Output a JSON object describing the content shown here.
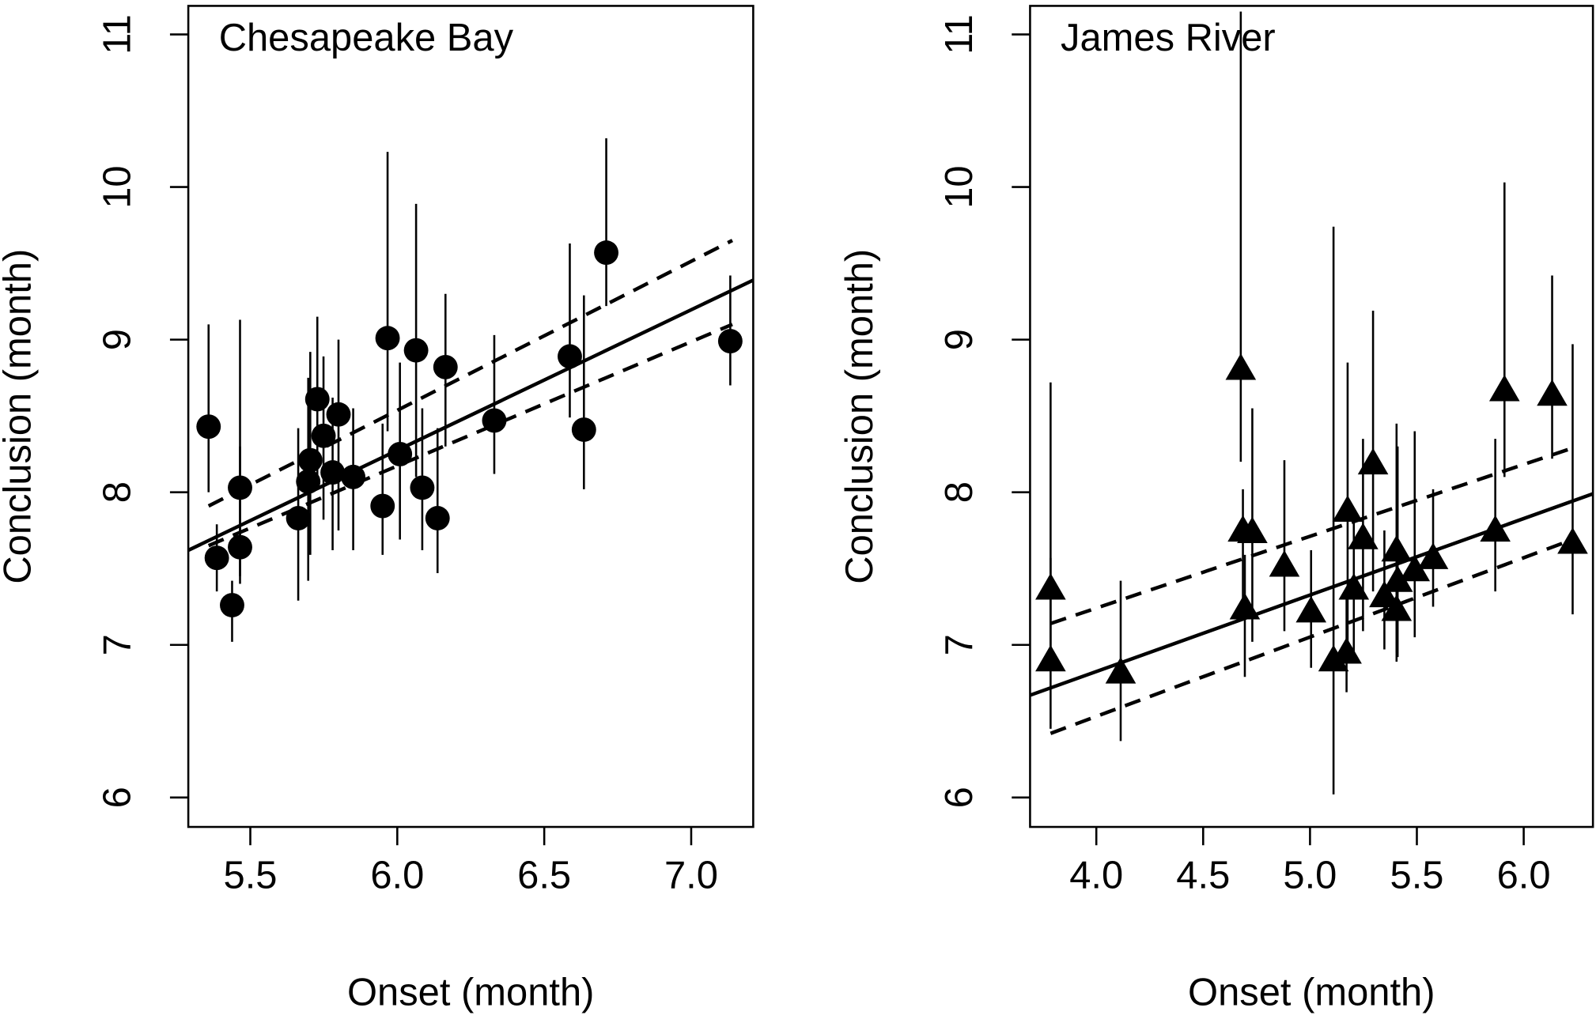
{
  "chart_data": [
    {
      "type": "scatter",
      "title": "Chesapeake Bay",
      "xlabel": "Onset (month)",
      "ylabel": "Conclusion (month)",
      "marker": "circle",
      "color": "#000000",
      "xlim": [
        5.289,
        7.211
      ],
      "ylim": [
        5.807,
        11.187
      ],
      "xticks": [
        5.5,
        {
          "value": 6,
          "label": "6.0"
        },
        6.5,
        {
          "value": 7,
          "label": "7.0"
        }
      ],
      "yticks": [
        6,
        7,
        8,
        9,
        10,
        11
      ],
      "x": [
        5.358,
        5.386,
        5.438,
        5.465,
        5.465,
        5.663,
        5.697,
        5.704,
        5.728,
        5.749,
        5.78,
        5.8,
        5.85,
        5.95,
        5.967,
        6.009,
        6.064,
        6.085,
        6.137,
        6.164,
        6.33,
        6.587,
        6.635,
        6.711,
        7.133
      ],
      "values": [
        8.43,
        7.57,
        7.26,
        8.03,
        7.64,
        7.83,
        8.07,
        8.21,
        8.61,
        8.37,
        8.13,
        8.51,
        8.1,
        7.91,
        9.01,
        8.25,
        8.93,
        8.03,
        7.83,
        8.82,
        8.47,
        8.89,
        8.41,
        9.57,
        8.99
      ],
      "lower": [
        8.0,
        7.35,
        7.02,
        7.45,
        7.4,
        7.29,
        7.42,
        7.59,
        8.09,
        7.82,
        7.62,
        7.75,
        7.62,
        7.59,
        8.4,
        7.69,
        8.1,
        7.62,
        7.47,
        8.3,
        8.12,
        8.49,
        8.02,
        9.22,
        8.7
      ],
      "upper": [
        9.1,
        7.79,
        7.42,
        9.13,
        8.3,
        8.42,
        8.75,
        8.92,
        9.15,
        8.89,
        8.62,
        9.0,
        8.55,
        8.45,
        10.23,
        8.85,
        9.89,
        8.55,
        8.42,
        9.3,
        9.03,
        9.63,
        9.29,
        10.32,
        9.42
      ],
      "lines": [
        {
          "style": "solid",
          "x": [
            5.289,
            7.211
          ],
          "values": [
            7.62,
            9.39
          ]
        },
        {
          "style": "dashed",
          "x": [
            5.358,
            7.14
          ],
          "values": [
            7.91,
            9.65
          ]
        },
        {
          "style": "dashed",
          "x": [
            5.358,
            7.14
          ],
          "values": [
            7.65,
            9.1
          ]
        }
      ]
    },
    {
      "type": "scatter",
      "title": "James River",
      "xlabel": "Onset (month)",
      "ylabel": "Conclusion (month)",
      "marker": "triangle",
      "color": "#000000",
      "xlim": [
        3.69,
        6.324
      ],
      "ylim": [
        5.807,
        11.187
      ],
      "xticks": [
        {
          "value": 4,
          "label": "4.0"
        },
        4.5,
        {
          "value": 5,
          "label": "5.0"
        },
        5.5,
        {
          "value": 6,
          "label": "6.0"
        }
      ],
      "yticks": [
        6,
        7,
        8,
        9,
        10,
        11
      ],
      "x": [
        3.786,
        3.786,
        4.114,
        4.676,
        4.686,
        4.73,
        4.695,
        4.88,
        5.005,
        5.11,
        5.176,
        5.171,
        5.205,
        5.248,
        5.295,
        5.348,
        5.405,
        5.405,
        5.41,
        5.49,
        5.576,
        5.867,
        5.91,
        6.133,
        6.229
      ],
      "values": [
        7.37,
        6.9,
        6.82,
        8.81,
        7.75,
        7.74,
        7.24,
        7.52,
        7.22,
        6.9,
        7.88,
        6.95,
        7.37,
        7.7,
        8.19,
        7.32,
        7.62,
        7.23,
        7.42,
        7.49,
        7.57,
        7.75,
        8.67,
        8.64,
        7.67
      ],
      "lower": [
        6.89,
        6.45,
        6.37,
        8.2,
        7.3,
        7.02,
        6.79,
        7.09,
        6.85,
        6.02,
        6.95,
        6.69,
        6.89,
        7.09,
        7.35,
        6.97,
        6.89,
        6.95,
        6.92,
        7.05,
        7.25,
        7.35,
        8.1,
        8.22,
        7.2
      ],
      "upper": [
        8.72,
        7.57,
        7.42,
        11.15,
        8.02,
        8.55,
        7.59,
        8.21,
        7.62,
        9.74,
        8.85,
        7.35,
        7.82,
        8.35,
        9.19,
        7.75,
        8.45,
        7.68,
        8.3,
        8.4,
        8.02,
        8.35,
        10.03,
        9.42,
        8.97
      ],
      "lines": [
        {
          "style": "solid",
          "x": [
            3.69,
            6.324
          ],
          "values": [
            6.67,
            7.99
          ]
        },
        {
          "style": "dashed",
          "x": [
            3.786,
            6.229
          ],
          "values": [
            7.14,
            8.29
          ]
        },
        {
          "style": "dashed",
          "x": [
            3.786,
            6.229
          ],
          "values": [
            6.42,
            7.69
          ]
        }
      ]
    }
  ]
}
